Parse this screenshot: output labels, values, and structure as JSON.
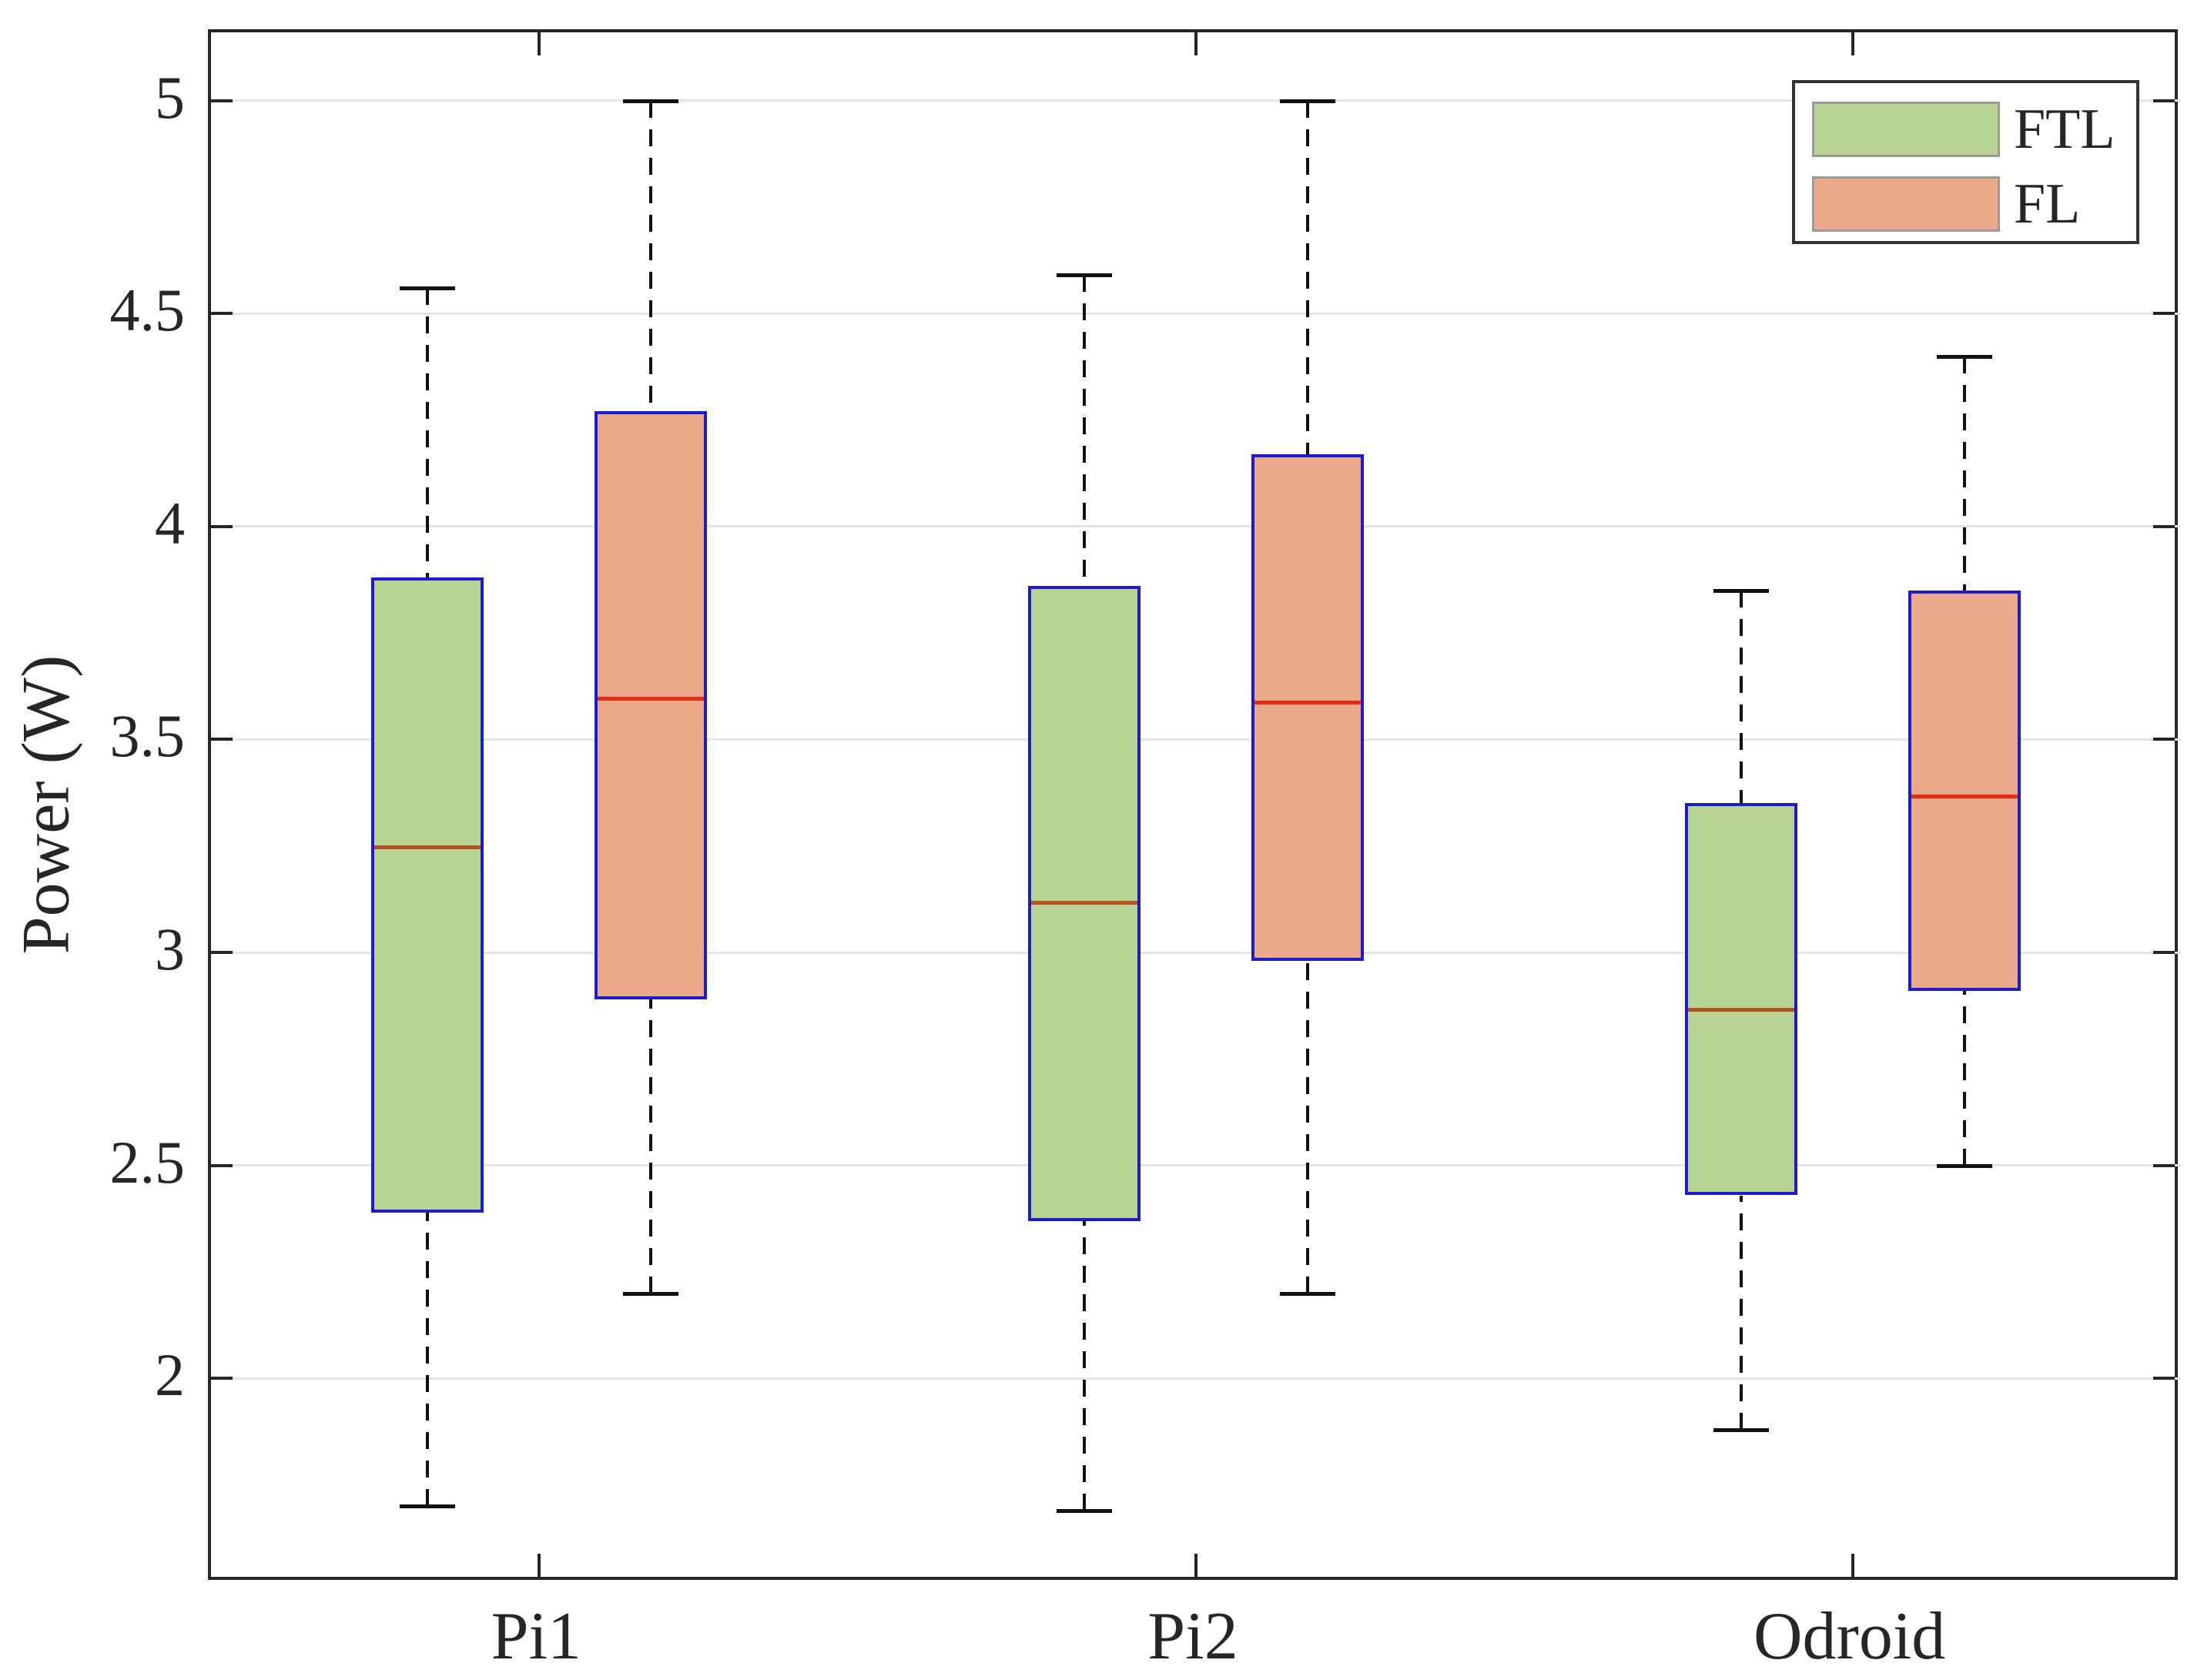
{
  "figure": {
    "y_axis_title": "Power (W)",
    "legend": {
      "items": [
        {
          "label": "FTL"
        },
        {
          "label": "FL"
        }
      ]
    }
  },
  "chart_data": {
    "type": "boxplot",
    "title": "",
    "xlabel": "",
    "ylabel": "Power (W)",
    "categories": [
      "Pi1",
      "Pi2",
      "Odroid"
    ],
    "ylim": [
      1.52,
      5.16
    ],
    "xlim": [
      0.5,
      3.5
    ],
    "grid": true,
    "legend_position": "top-right",
    "ytick_values": [
      5,
      4.5,
      4,
      3.5,
      3,
      2.5,
      2
    ],
    "ytick_labels": [
      "5",
      "4.5",
      "4",
      "3.5",
      "3",
      "2.5",
      "2"
    ],
    "series": [
      {
        "name": "FTL",
        "fill_color": "#b8d394",
        "border_color": "#1c1ccd",
        "median_color": "#b2541c",
        "offset": -0.17,
        "boxes": [
          {
            "category": "Pi1",
            "whisker_low": 1.7,
            "q1": 2.39,
            "median": 3.25,
            "q3": 3.88,
            "whisker_high": 4.56
          },
          {
            "category": "Pi2",
            "whisker_low": 1.69,
            "q1": 2.37,
            "median": 3.12,
            "q3": 3.86,
            "whisker_high": 4.59
          },
          {
            "category": "Odroid",
            "whisker_low": 1.88,
            "q1": 2.43,
            "median": 2.87,
            "q3": 3.35,
            "whisker_high": 3.85
          }
        ]
      },
      {
        "name": "FL",
        "fill_color": "#eca98b",
        "border_color": "#1c1ccd",
        "median_color": "#e52d12",
        "offset": 0.17,
        "boxes": [
          {
            "category": "Pi1",
            "whisker_low": 2.2,
            "q1": 2.89,
            "median": 3.6,
            "q3": 4.27,
            "whisker_high": 5.0
          },
          {
            "category": "Pi2",
            "whisker_low": 2.2,
            "q1": 2.98,
            "median": 3.59,
            "q3": 4.17,
            "whisker_high": 5.0
          },
          {
            "category": "Odroid",
            "whisker_low": 2.5,
            "q1": 2.91,
            "median": 3.37,
            "q3": 3.85,
            "whisker_high": 4.4
          }
        ]
      }
    ],
    "colors": {
      "axis": "#262626",
      "grid": "#e4e4e4",
      "whisker": "#111111",
      "text": "#262626"
    }
  }
}
